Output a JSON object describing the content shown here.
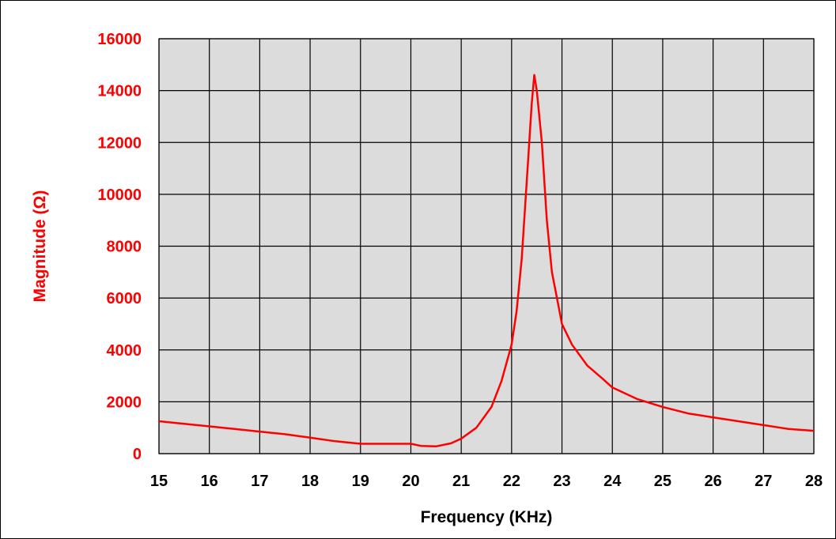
{
  "chart_data": {
    "type": "line",
    "title": "",
    "xlabel": "Frequency (KHz)",
    "ylabel": "Magnitude (Ω)",
    "xlim": [
      15,
      28
    ],
    "ylim": [
      0,
      16000
    ],
    "x_ticks": [
      15,
      16,
      17,
      18,
      19,
      20,
      21,
      22,
      23,
      24,
      25,
      26,
      27,
      28
    ],
    "y_ticks": [
      0,
      2000,
      4000,
      6000,
      8000,
      10000,
      12000,
      14000,
      16000
    ],
    "grid": true,
    "series": [
      {
        "x": [
          15,
          15.5,
          16,
          16.5,
          17,
          17.5,
          18,
          18.5,
          19,
          19.5,
          20,
          20.2,
          20.5,
          20.8,
          21,
          21.3,
          21.6,
          21.8,
          22,
          22.1,
          22.2,
          22.3,
          22.4,
          22.45,
          22.5,
          22.6,
          22.7,
          22.8,
          22.9,
          23,
          23.2,
          23.5,
          23.8,
          24,
          24.5,
          25,
          25.5,
          26,
          26.5,
          27,
          27.5,
          28
        ],
        "y": [
          1250,
          1150,
          1050,
          950,
          850,
          750,
          620,
          480,
          380,
          380,
          380,
          300,
          280,
          400,
          580,
          1000,
          1800,
          2800,
          4200,
          5500,
          7500,
          10500,
          13500,
          14600,
          14000,
          12000,
          9000,
          7000,
          6000,
          5000,
          4200,
          3400,
          2900,
          2550,
          2100,
          1800,
          1550,
          1400,
          1250,
          1100,
          950,
          880
        ]
      }
    ],
    "colors": {
      "plot_background": "#dcdcdc",
      "line": "#ff0000",
      "axis_text": "#000000",
      "y_tick_text": "#ff0000",
      "ylabel_text": "#ff0000",
      "grid": "#000000"
    }
  }
}
